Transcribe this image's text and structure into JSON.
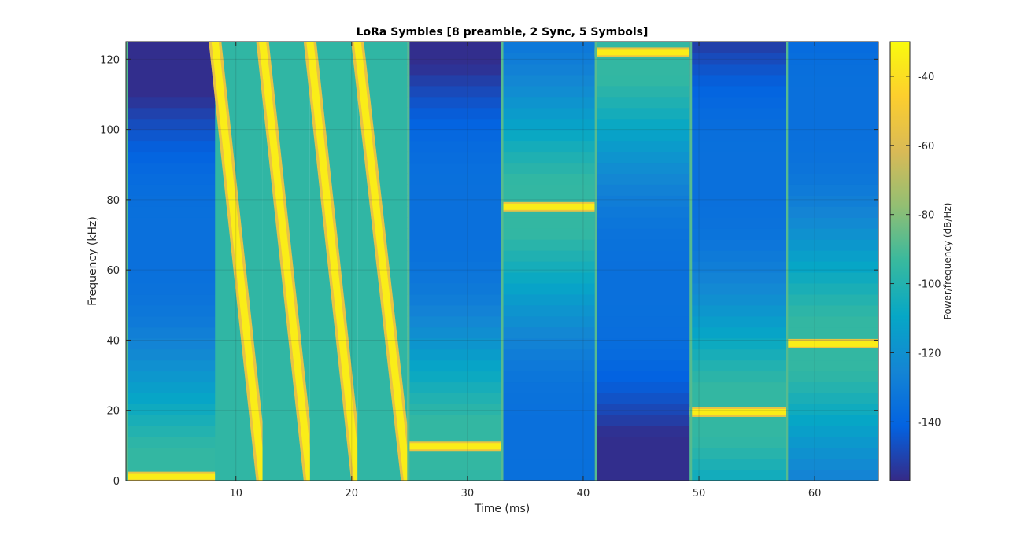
{
  "chart_data": {
    "type": "heatmap",
    "title": "LoRa Symbles [8 preamble, 2 Sync, 5 Symbols]",
    "xlabel": "Time (ms)",
    "ylabel": "Frequency (kHz)",
    "colorbar_label": "Power/frequency (dB/Hz)",
    "colormap": "parula",
    "xlim": [
      0.5,
      65.5
    ],
    "ylim": [
      0,
      125
    ],
    "clim": [
      -157,
      -30
    ],
    "x_ticks": [
      10,
      20,
      30,
      40,
      50,
      60
    ],
    "y_ticks": [
      0,
      20,
      40,
      60,
      80,
      100,
      120
    ],
    "colorbar_ticks": [
      -40,
      -60,
      -80,
      -100,
      -120,
      -140
    ],
    "grid": true,
    "segments": [
      {
        "kind": "tone",
        "t_start": 0.5,
        "t_end": 8.2,
        "freq": 1.2
      },
      {
        "kind": "downchirp",
        "t_start": 8.2,
        "t_end": 12.3,
        "f_start": 125,
        "f_end": 0
      },
      {
        "kind": "downchirp",
        "t_start": 12.3,
        "t_end": 16.4,
        "f_start": 125,
        "f_end": 0
      },
      {
        "kind": "downchirp",
        "t_start": 16.4,
        "t_end": 20.5,
        "f_start": 125,
        "f_end": 0
      },
      {
        "kind": "downchirp",
        "t_start": 20.5,
        "t_end": 24.8,
        "f_start": 125,
        "f_end": 0
      },
      {
        "kind": "tone",
        "t_start": 24.8,
        "t_end": 32.9,
        "freq": 9.8
      },
      {
        "kind": "tone",
        "t_start": 32.9,
        "t_end": 41.0,
        "freq": 78
      },
      {
        "kind": "tone",
        "t_start": 41.0,
        "t_end": 49.2,
        "freq": 122
      },
      {
        "kind": "tone",
        "t_start": 49.2,
        "t_end": 57.5,
        "freq": 19.5
      },
      {
        "kind": "tone",
        "t_start": 57.5,
        "t_end": 65.5,
        "freq": 39
      }
    ]
  }
}
